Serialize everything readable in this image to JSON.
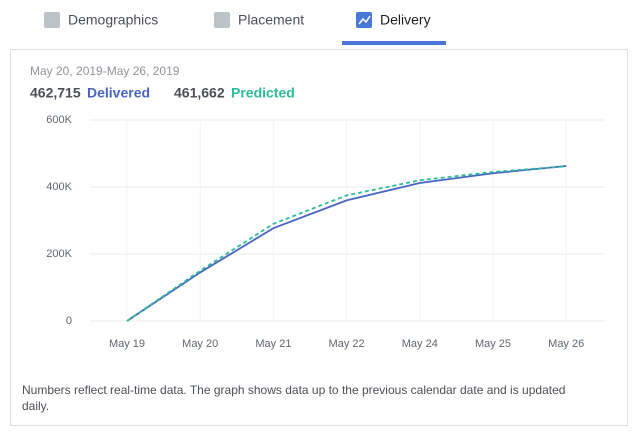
{
  "tabs": [
    "Demographics",
    "Placement",
    "Delivery"
  ],
  "date_range": "May 20, 2019-May 26, 2019",
  "summary": {
    "delivered_value": "462,715",
    "delivered_label": "Delivered",
    "predicted_value": "461,662",
    "predicted_label": "Predicted"
  },
  "chart_data": {
    "type": "line",
    "categories": [
      "May 19",
      "May 20",
      "May 21",
      "May 22",
      "May 24",
      "May 25",
      "May 26"
    ],
    "series": [
      {
        "name": "Delivered",
        "color": "#4a64c2",
        "dashed": false,
        "values": [
          0,
          145000,
          277000,
          360000,
          412000,
          441000,
          462715
        ]
      },
      {
        "name": "Predicted",
        "color": "#2bbd9a",
        "dashed": true,
        "values": [
          0,
          150000,
          290000,
          375000,
          420000,
          445000,
          461662
        ]
      }
    ],
    "ylim": [
      0,
      600000
    ],
    "yticks": [
      0,
      {
        "value": 200000,
        "label": "200K"
      },
      {
        "value": 400000,
        "label": "400K"
      },
      {
        "value": 600000,
        "label": "600K"
      }
    ],
    "grid": true
  },
  "footnote": "Numbers reflect real-time data. The graph shows data up to the previous calendar date and is updated daily."
}
